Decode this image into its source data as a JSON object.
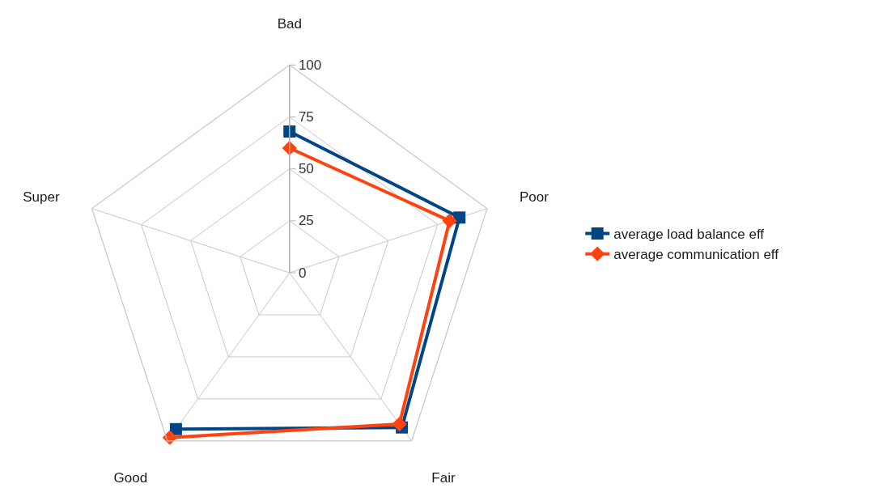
{
  "chart_data": {
    "type": "radar",
    "categories": [
      "Bad",
      "Poor",
      "Fair",
      "Good",
      "Super"
    ],
    "series": [
      {
        "name": "average load balance eff",
        "color": "#004586",
        "values": [
          68,
          86,
          92,
          93,
          null
        ],
        "marker": "square"
      },
      {
        "name": "average communication eff",
        "color": "#ff420e",
        "values": [
          60,
          81,
          90,
          98,
          null
        ],
        "marker": "diamond"
      }
    ],
    "ylim": [
      0,
      100
    ],
    "yticks": [
      0,
      25,
      50,
      75,
      100
    ],
    "grid": true,
    "legend": "right",
    "line_style": "solid"
  }
}
